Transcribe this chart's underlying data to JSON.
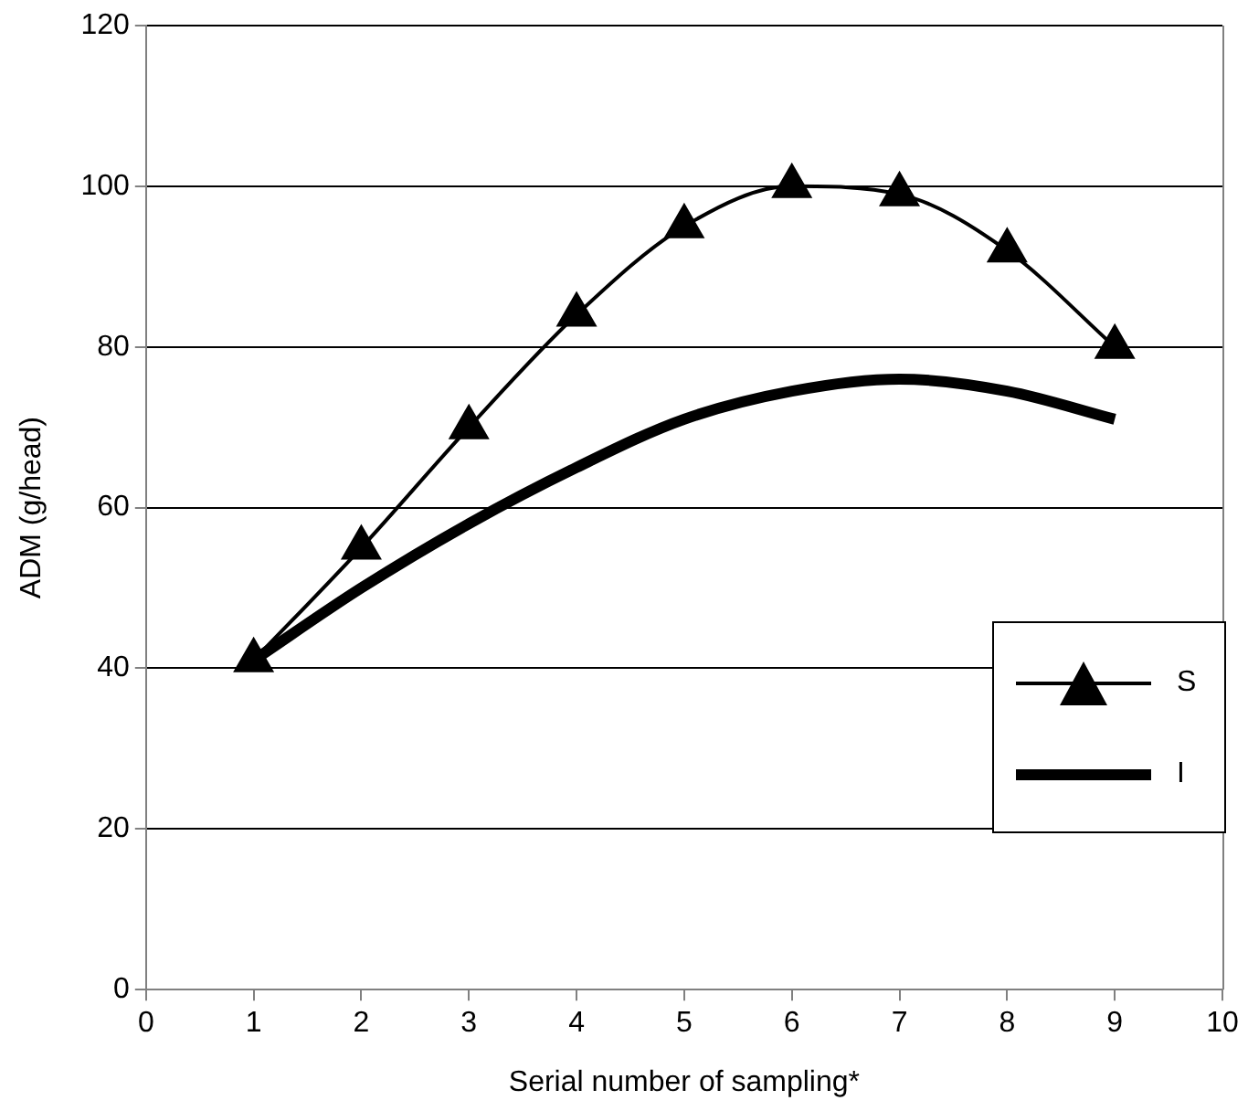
{
  "chart_data": {
    "type": "line",
    "xlabel": "Serial number of sampling*",
    "ylabel": "ADM (g/head)",
    "x": [
      1,
      2,
      3,
      4,
      5,
      6,
      7,
      8,
      9
    ],
    "series": [
      {
        "name": "S",
        "color": "#000000",
        "marker": "triangle",
        "values": [
          41,
          55,
          70,
          84,
          95,
          100,
          99,
          92,
          80
        ]
      },
      {
        "name": "I",
        "color": "#000000",
        "marker": "none",
        "values": [
          41,
          50,
          58,
          65,
          71,
          74.5,
          76,
          74.5,
          71
        ]
      }
    ],
    "xlim": [
      0,
      10
    ],
    "xticks": [
      0,
      1,
      2,
      3,
      4,
      5,
      6,
      7,
      8,
      9,
      10
    ],
    "ylim": [
      0,
      120
    ],
    "yticks": [
      0,
      20,
      40,
      60,
      80,
      100,
      120
    ],
    "grid": "y",
    "legend": "bottom right"
  }
}
